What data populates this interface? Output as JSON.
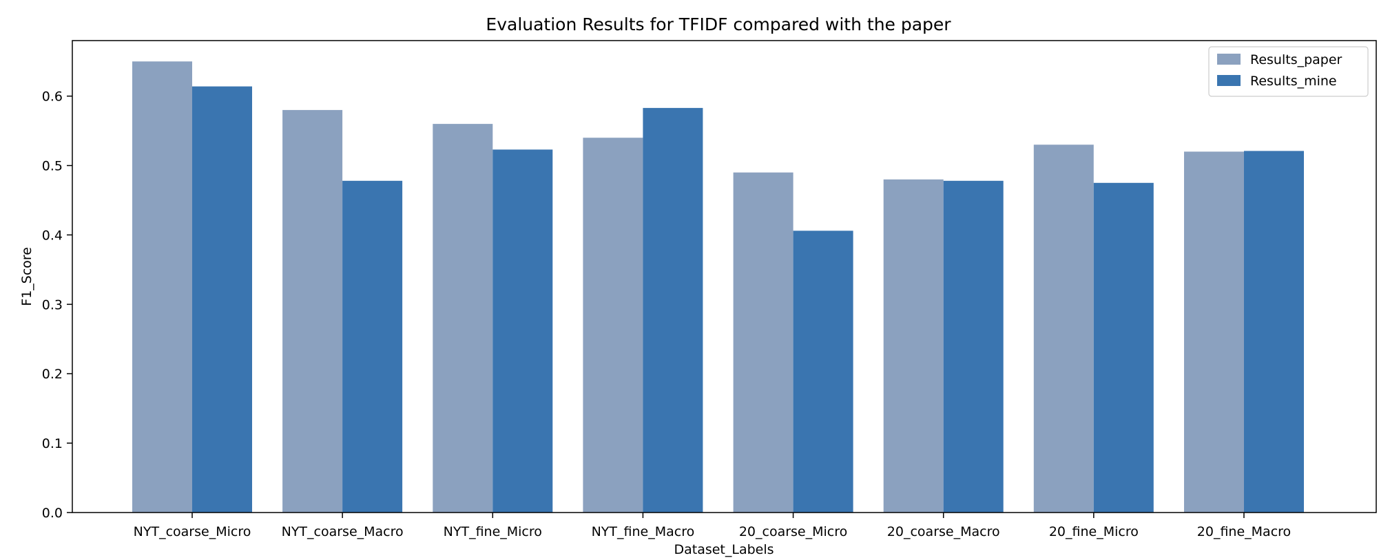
{
  "chart_data": {
    "type": "bar",
    "title": "Evaluation Results for TFIDF compared with the paper",
    "xlabel": "Dataset_Labels",
    "ylabel": "F1_Score",
    "ylim": [
      0,
      0.68
    ],
    "yticks": [
      0.0,
      0.1,
      0.2,
      0.3,
      0.4,
      0.5,
      0.6
    ],
    "ytick_labels": [
      "0.0",
      "0.1",
      "0.2",
      "0.3",
      "0.4",
      "0.5",
      "0.6"
    ],
    "grid": false,
    "legend_position": "top-right",
    "categories": [
      "NYT_coarse_Micro",
      "NYT_coarse_Macro",
      "NYT_fine_Micro",
      "NYT_fine_Macro",
      "20_coarse_Micro",
      "20_coarse_Macro",
      "20_fine_Micro",
      "20_fine_Macro"
    ],
    "series": [
      {
        "name": "Results_paper",
        "color": "#8ba1bf",
        "values": [
          0.65,
          0.58,
          0.56,
          0.54,
          0.49,
          0.48,
          0.53,
          0.52
        ]
      },
      {
        "name": "Results_mine",
        "color": "#3a75b0",
        "values": [
          0.614,
          0.478,
          0.523,
          0.583,
          0.406,
          0.478,
          0.475,
          0.521
        ]
      }
    ]
  }
}
